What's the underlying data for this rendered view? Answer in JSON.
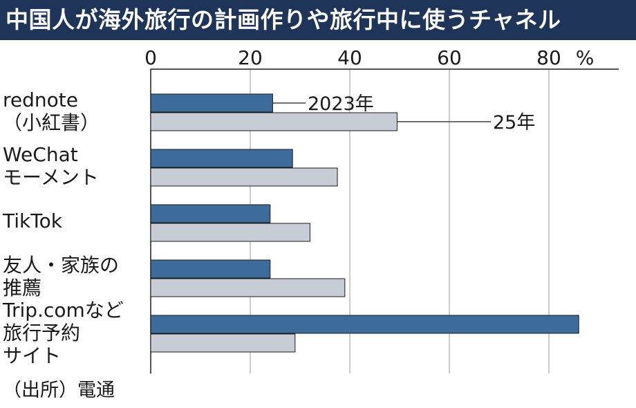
{
  "title": "中国人が海外旅行の計画作りや旅行中に使うチャネル",
  "source": "（出所）電通",
  "chart_data": {
    "type": "bar",
    "orientation": "horizontal",
    "unit": "%",
    "xlim": [
      0,
      94
    ],
    "ticks": [
      0,
      20,
      40,
      60,
      80
    ],
    "tick_labels": [
      "0",
      "20",
      "40",
      "60",
      "80"
    ],
    "gridlines": true,
    "categories": [
      [
        "rednote",
        "（小紅書）"
      ],
      [
        "WeChat",
        "モーメント"
      ],
      [
        "TikTok"
      ],
      [
        "友人・家族の",
        "推薦"
      ],
      [
        "Trip.comなど",
        "旅行予約",
        "サイト"
      ]
    ],
    "series": [
      {
        "name": "2023年",
        "color": "#3c6b9c",
        "values": [
          24.5,
          28.5,
          24,
          24,
          86
        ]
      },
      {
        "name": "25年",
        "color": "#c8ccd4",
        "values": [
          49.5,
          37.5,
          32,
          39,
          29
        ]
      }
    ]
  }
}
